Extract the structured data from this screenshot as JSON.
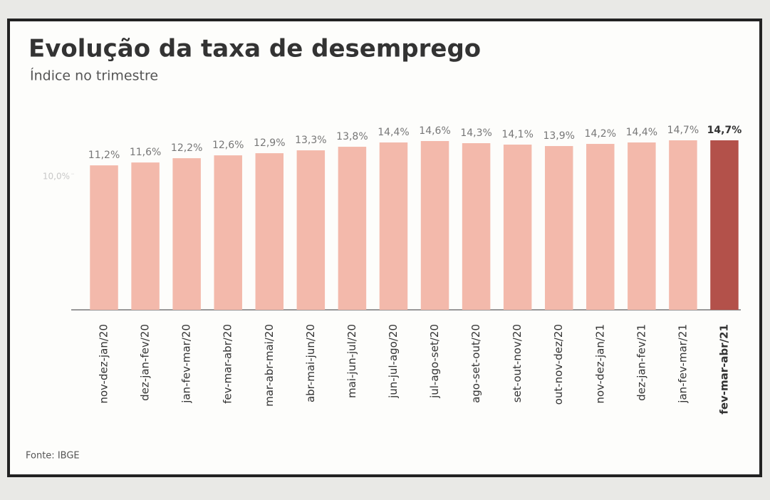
{
  "chart_data": {
    "type": "bar",
    "title": "Evolução da taxa de desemprego",
    "subtitle": "Índice no trimestre",
    "source": "Fonte: IBGE",
    "categories": [
      "nov-dez-jan/20",
      "dez-jan-fev/20",
      "jan-fev-mar/20",
      "fev-mar-abr/20",
      "mar-abr-mai/20",
      "abr-mai-jun/20",
      "mai-jun-jul/20",
      "jun-jul-ago/20",
      "jul-ago-set/20",
      "ago-set-out/20",
      "set-out-nov/20",
      "out-nov-dez/20",
      "nov-dez-jan/21",
      "dez-jan-fev/21",
      "jan-fev-mar/21",
      "fev-mar-abr/21"
    ],
    "values": [
      11.2,
      11.6,
      12.2,
      12.6,
      12.9,
      13.3,
      13.8,
      14.4,
      14.6,
      14.3,
      14.1,
      13.9,
      14.2,
      14.4,
      14.7,
      14.7
    ],
    "value_labels": [
      "11,2%",
      "11,6%",
      "12,2%",
      "12,6%",
      "12,9%",
      "13,3%",
      "13,8%",
      "14,4%",
      "14,6%",
      "14,3%",
      "14,1%",
      "13,9%",
      "14,2%",
      "14,4%",
      "14,7%",
      "14,7%"
    ],
    "colors": [
      "#f3b9ab",
      "#f3b9ab",
      "#f3b9ab",
      "#f3b9ab",
      "#f3b9ab",
      "#f3b9ab",
      "#f3b9ab",
      "#f3b9ab",
      "#f3b9ab",
      "#f3b9ab",
      "#f3b9ab",
      "#f3b9ab",
      "#f3b9ab",
      "#f3b9ab",
      "#f3b9ab",
      "#b3514a"
    ],
    "ylim": [
      -9,
      15
    ],
    "yticks": [
      {
        "value": 10,
        "label": "10,0%"
      }
    ],
    "grid": false
  }
}
